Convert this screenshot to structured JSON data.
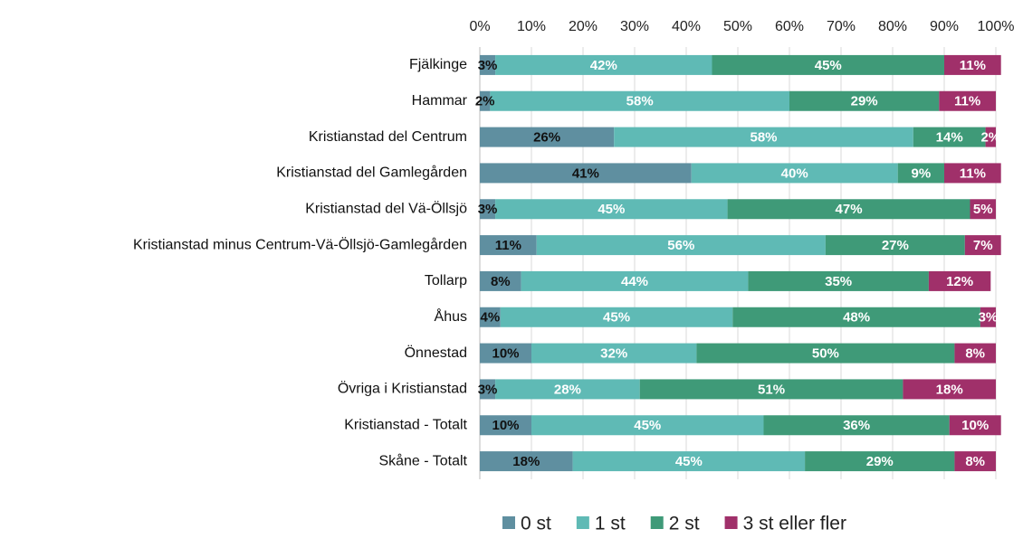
{
  "chart_data": {
    "type": "bar",
    "orientation": "horizontal",
    "stacked": true,
    "categories": [
      "Fjälkinge",
      "Hammar",
      "Kristianstad del Centrum",
      "Kristianstad del Gamlegården",
      "Kristianstad del Vä-Öllsjö",
      "Kristianstad minus Centrum-Vä-Öllsjö-Gamlegården",
      "Tollarp",
      "Åhus",
      "Önnestad",
      "Övriga i Kristianstad",
      "Kristianstad - Totalt",
      "Skåne - Totalt"
    ],
    "series": [
      {
        "name": "0 st",
        "color": "#5f8fa0",
        "values": [
          3,
          2,
          26,
          41,
          3,
          11,
          8,
          4,
          10,
          3,
          10,
          18
        ],
        "value_labels": [
          "3%",
          "2%",
          "26%",
          "41%",
          "3%",
          "11%",
          "8%",
          "4%",
          "10%",
          "3%",
          "10%",
          "18%"
        ]
      },
      {
        "name": "1 st",
        "color": "#5fbab5",
        "values": [
          42,
          58,
          58,
          40,
          45,
          56,
          44,
          45,
          32,
          28,
          45,
          45
        ],
        "value_labels": [
          "42%",
          "58%",
          "58%",
          "40%",
          "45%",
          "56%",
          "44%",
          "45%",
          "32%",
          "28%",
          "45%",
          "45%"
        ]
      },
      {
        "name": "2 st",
        "color": "#3f9a78",
        "values": [
          45,
          29,
          14,
          9,
          47,
          27,
          35,
          48,
          50,
          51,
          36,
          29
        ],
        "value_labels": [
          "45%",
          "29%",
          "14%",
          "9%",
          "47%",
          "27%",
          "35%",
          "48%",
          "50%",
          "51%",
          "36%",
          "29%"
        ]
      },
      {
        "name": "3 st eller fler",
        "color": "#a0306a",
        "values": [
          11,
          11,
          2,
          11,
          5,
          7,
          12,
          3,
          8,
          18,
          10,
          8
        ],
        "value_labels": [
          "11%",
          "11%",
          "2%",
          "11%",
          "5%",
          "7%",
          "12%",
          "3%",
          "8%",
          "18%",
          "10%",
          "8%"
        ]
      }
    ],
    "xlim": [
      0,
      100
    ],
    "xticks": [
      {
        "value": 0,
        "label": "0%"
      },
      {
        "value": 10,
        "label": "10%"
      },
      {
        "value": 20,
        "label": "20%"
      },
      {
        "value": 30,
        "label": "30%"
      },
      {
        "value": 40,
        "label": "40%"
      },
      {
        "value": 50,
        "label": "50%"
      },
      {
        "value": 60,
        "label": "60%"
      },
      {
        "value": 70,
        "label": "70%"
      },
      {
        "value": 80,
        "label": "80%"
      },
      {
        "value": 90,
        "label": "90%"
      },
      {
        "value": 100,
        "label": "100%"
      }
    ],
    "grid": true,
    "legend": "bottom"
  }
}
